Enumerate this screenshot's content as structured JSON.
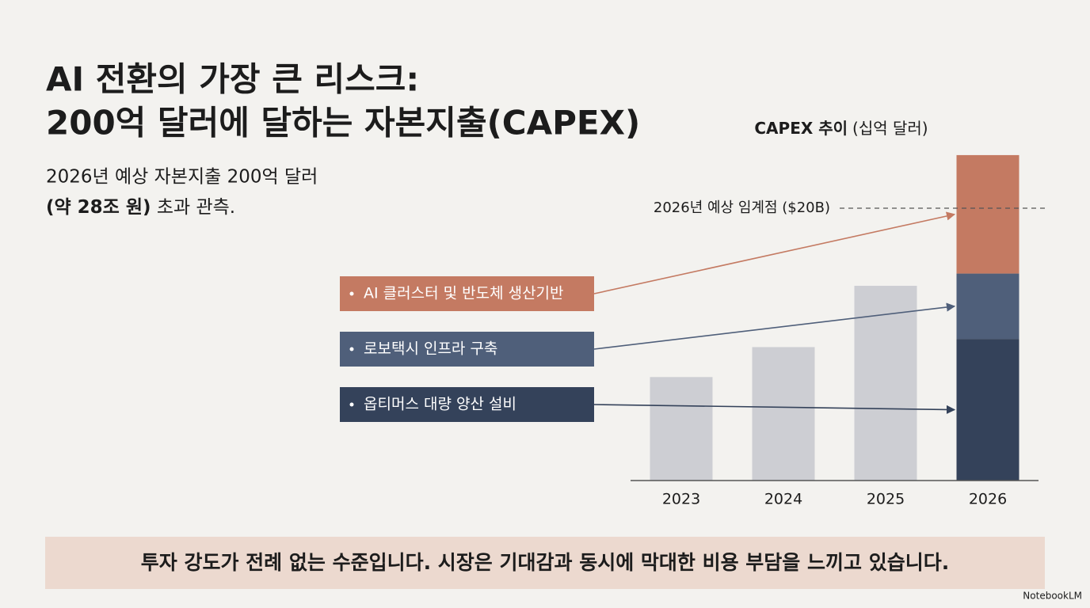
{
  "slide": {
    "title": [
      "AI 전환의 가장 큰 리스크:",
      "200억 달러에 달하는 자본지출(CAPEX)"
    ],
    "body": [
      [
        "2026년 예상 자본지출 200억 달러"
      ],
      [
        "(약 28조 원)",
        " 초과 관측."
      ]
    ],
    "footer": "투자 강도가 전례 없는 수준입니다. 시장은 기대감과 동시에 막대한 비용 부담을 느끼고 있습니다.",
    "brand": "NotebookLM"
  },
  "chart_data": {
    "type": "bar",
    "stacked": true,
    "title": "CAPEX 추이",
    "unit_label": "(십억 달러)",
    "categories": [
      "2023",
      "2024",
      "2025",
      "2026"
    ],
    "series": [
      {
        "color": "#cdced3",
        "values": [
          7.6,
          9.8,
          14.3,
          null
        ]
      },
      {
        "name": "옵티머스 대량 양산 설비",
        "color": "#34425a",
        "values": [
          null,
          null,
          null,
          10.4
        ]
      },
      {
        "name": "로보택시 인프라 구축",
        "color": "#4f5f7a",
        "values": [
          null,
          null,
          null,
          4.8
        ]
      },
      {
        "name": "AI 클러스터 및 반도체 생산기반",
        "color": "#c47a62",
        "values": [
          null,
          null,
          null,
          8.7
        ]
      }
    ],
    "ylim": [
      0,
      25
    ],
    "threshold": {
      "value": 20,
      "label": "2026년 예상 임계점 ($20B)"
    }
  }
}
